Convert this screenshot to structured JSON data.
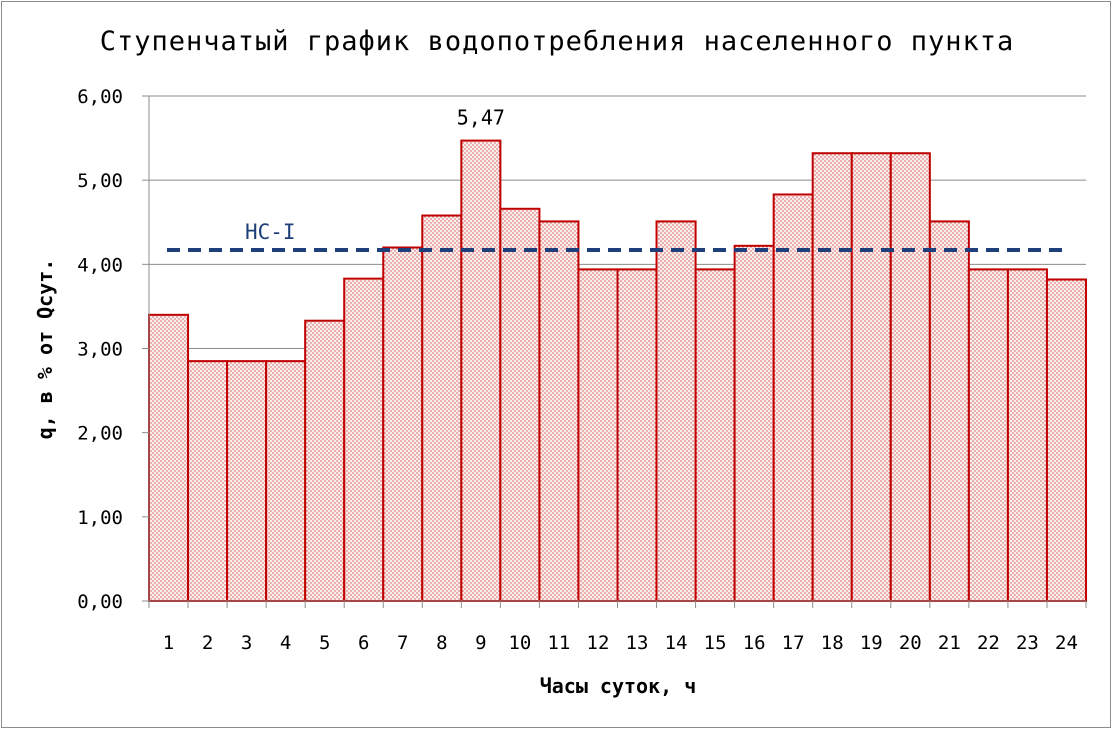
{
  "chart_data": {
    "type": "bar",
    "title": "Ступенчатый график водопотребления населенного пункта",
    "xlabel": "Часы суток, ч",
    "ylabel": "q, в % от Qсут.",
    "categories": [
      "1",
      "2",
      "3",
      "4",
      "5",
      "6",
      "7",
      "8",
      "9",
      "10",
      "11",
      "12",
      "13",
      "14",
      "15",
      "16",
      "17",
      "18",
      "19",
      "20",
      "21",
      "22",
      "23",
      "24"
    ],
    "values": [
      3.4,
      2.85,
      2.85,
      2.85,
      3.33,
      3.83,
      4.2,
      4.58,
      5.47,
      4.66,
      4.51,
      3.94,
      3.94,
      4.51,
      3.94,
      4.22,
      4.83,
      5.32,
      5.32,
      5.32,
      4.51,
      3.94,
      3.94,
      3.82
    ],
    "ylim": [
      0,
      6
    ],
    "yticks": [
      "0,00",
      "1,00",
      "2,00",
      "3,00",
      "4,00",
      "5,00",
      "6,00"
    ],
    "grid": true,
    "bar_color": "#c00000",
    "bar_fill_color": "#fbe4e4",
    "annotations": [
      {
        "category": "9",
        "text": "5,47"
      }
    ],
    "reference_line": {
      "label": "НС-I",
      "value": 4.17,
      "color": "#1f3f7a",
      "style": "dashed"
    }
  }
}
